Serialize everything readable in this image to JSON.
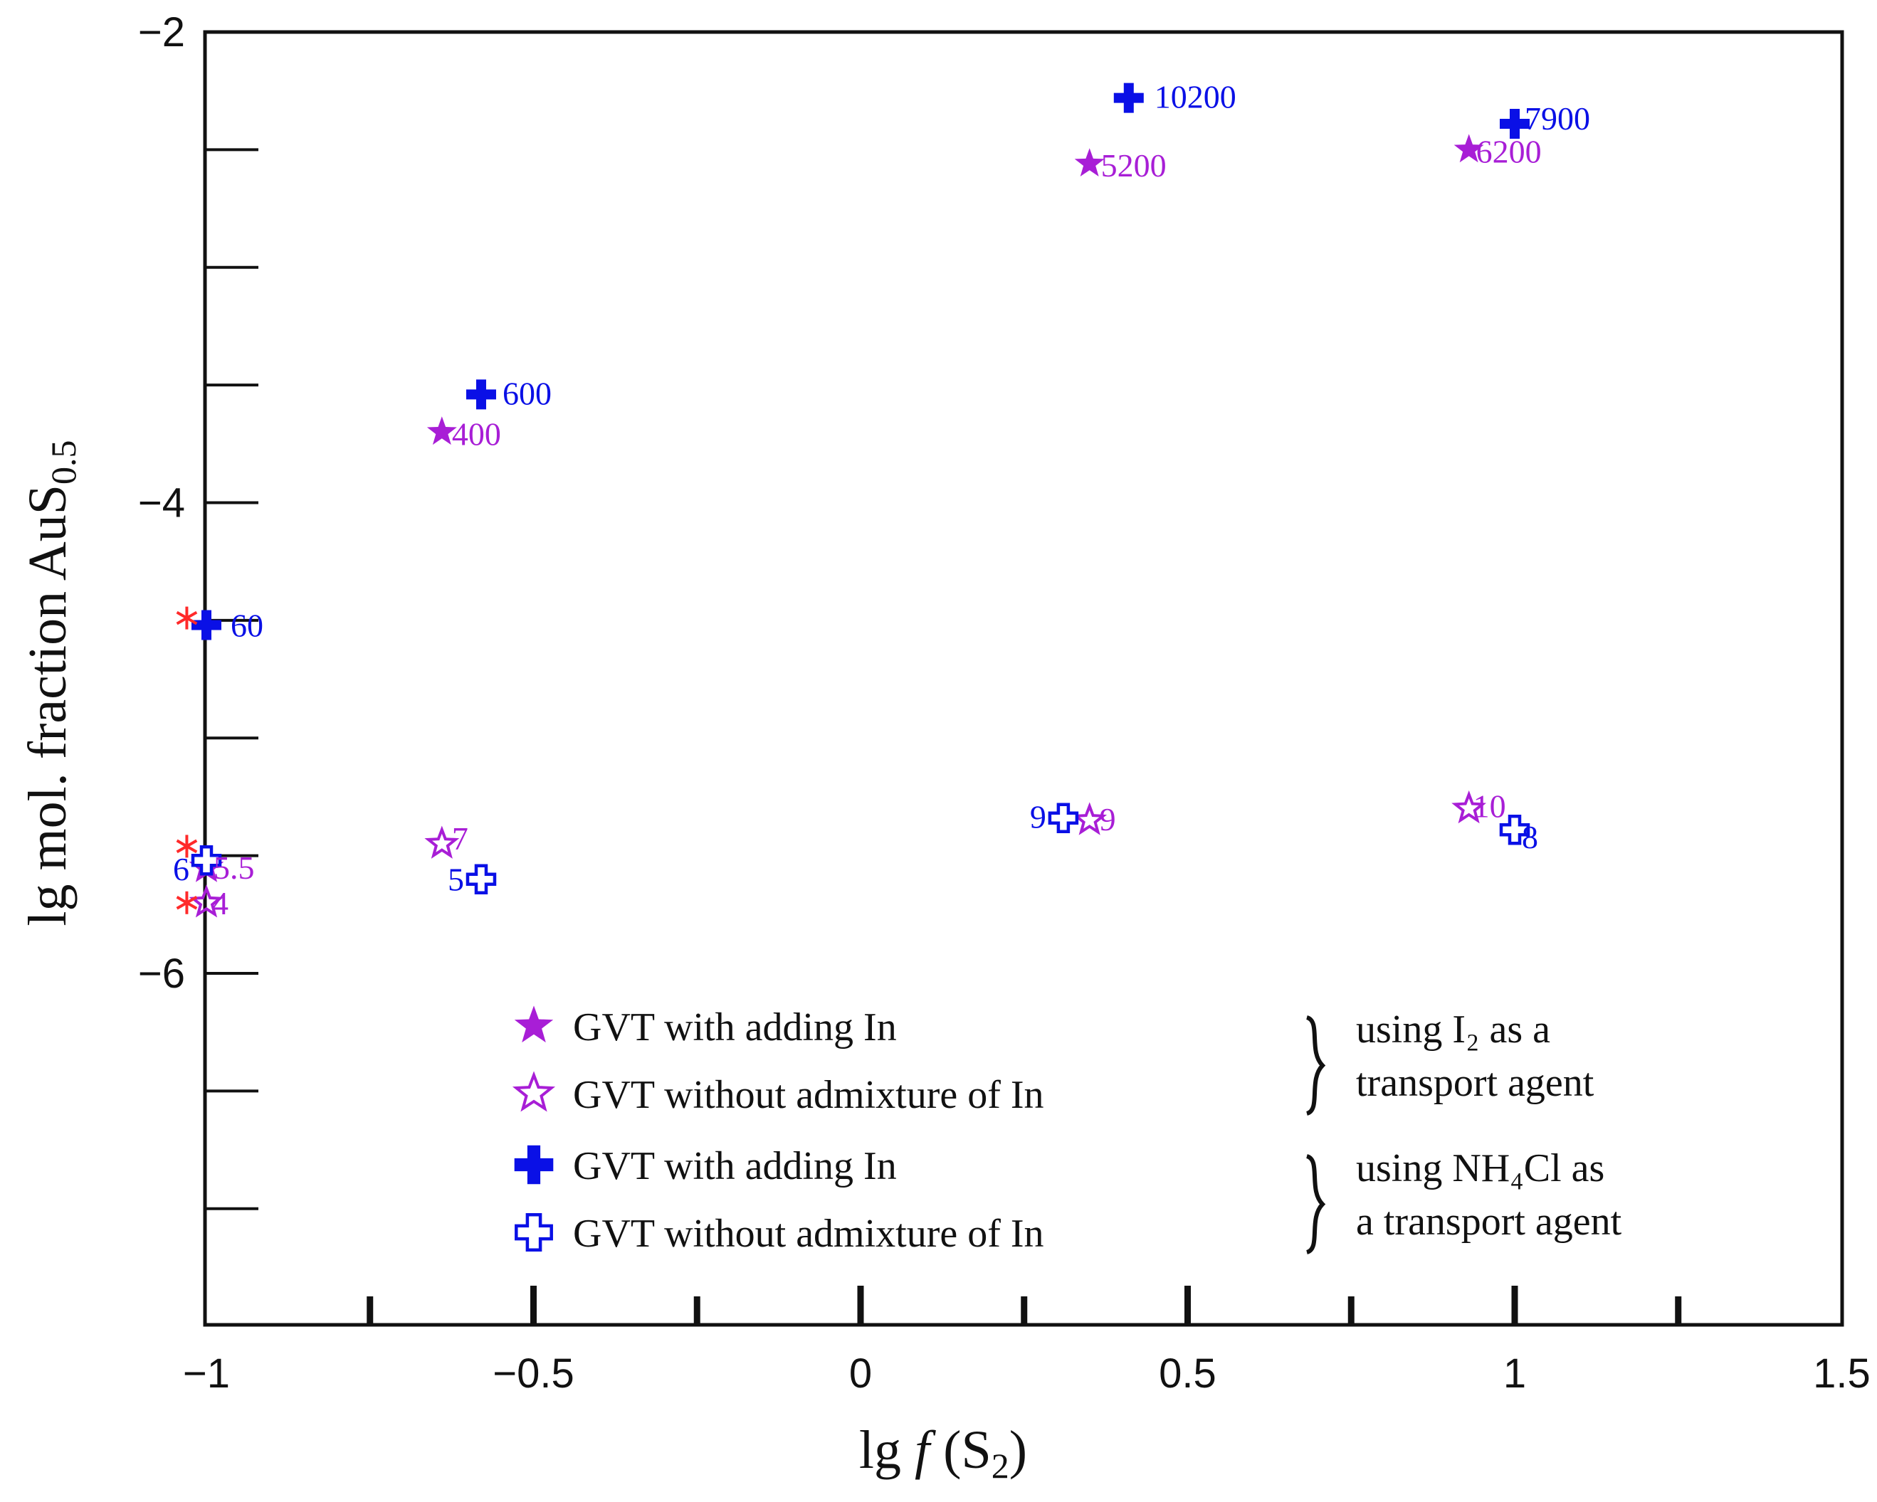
{
  "colors": {
    "purple": "#a81ed6",
    "blue": "#0a10e6",
    "red": "#ff2a2a",
    "axis": "#111111"
  },
  "chart_data": {
    "type": "scatter",
    "title": "",
    "xlabel": "lg f(S2)",
    "ylabel": "lg mol. fraction AuS0.5",
    "xlim": [
      -1,
      1.5
    ],
    "ylim": [
      -7.5,
      -2
    ],
    "x_ticks": [
      -1,
      -0.5,
      0,
      0.5,
      1,
      1.5
    ],
    "x_tick_labels": [
      "−1",
      "−0.5",
      "0",
      "0.5",
      "1",
      "1.5"
    ],
    "y_ticks": [
      -2,
      -4,
      -6
    ],
    "y_tick_labels": [
      "−2",
      "−4",
      "−6"
    ],
    "series": [
      {
        "name": "GVT with adding In (using I2 as a transport agent)",
        "marker": "filled-star",
        "color": "#a81ed6",
        "points": [
          {
            "x": -0.64,
            "y": -3.7,
            "label": "400"
          },
          {
            "x": 0.35,
            "y": -2.56,
            "label": "5200"
          },
          {
            "x": 0.93,
            "y": -2.5,
            "label": "6200"
          }
        ]
      },
      {
        "name": "GVT without admixture of In (using I2 as a transport agent)",
        "marker": "open-star",
        "color": "#a81ed6",
        "points": [
          {
            "x": -1.0,
            "y": -5.7,
            "label": "4"
          },
          {
            "x": -1.0,
            "y": -5.55,
            "label": "5.5"
          },
          {
            "x": -0.64,
            "y": -5.45,
            "label": "7"
          },
          {
            "x": 0.35,
            "y": -5.35,
            "label": "9"
          },
          {
            "x": 0.93,
            "y": -5.3,
            "label": "10"
          }
        ]
      },
      {
        "name": "GVT with adding In (using NH4Cl as a transport agent)",
        "marker": "filled-cross",
        "color": "#0a10e6",
        "points": [
          {
            "x": -1.0,
            "y": -4.52,
            "label": "60"
          },
          {
            "x": -0.58,
            "y": -3.54,
            "label": "600"
          },
          {
            "x": 0.41,
            "y": -2.28,
            "label": "10200"
          },
          {
            "x": 1.0,
            "y": -2.39,
            "label": "7900"
          }
        ]
      },
      {
        "name": "GVT without admixture of In (using NH4Cl as a transport agent)",
        "marker": "open-cross",
        "color": "#0a10e6",
        "points": [
          {
            "x": -1.0,
            "y": -5.52,
            "label": "6"
          },
          {
            "x": -0.58,
            "y": -5.6,
            "label": "5"
          },
          {
            "x": 0.31,
            "y": -5.34,
            "label": "9"
          },
          {
            "x": 1.0,
            "y": -5.39,
            "label": "8"
          }
        ]
      },
      {
        "name": "asterisk markers",
        "marker": "asterisk",
        "color": "#ff2a2a",
        "points": [
          {
            "x": -1.03,
            "y": -4.49
          },
          {
            "x": -1.03,
            "y": -5.46
          },
          {
            "x": -1.03,
            "y": -5.7
          }
        ]
      }
    ],
    "legend": {
      "placement": "bottom-right",
      "entries": [
        {
          "marker": "filled-star",
          "color": "#a81ed6",
          "label": "GVT with adding In"
        },
        {
          "marker": "open-star",
          "color": "#a81ed6",
          "label": "GVT without admixture of In"
        },
        {
          "marker": "filled-cross",
          "color": "#0a10e6",
          "label": "GVT with adding In"
        },
        {
          "marker": "open-cross",
          "color": "#0a10e6",
          "label": "GVT without admixture of In"
        }
      ],
      "group_notes": [
        {
          "line1": "using I₂ as a",
          "line2": "transport agent"
        },
        {
          "line1": "using NH₄Cl as",
          "line2": "a transport agent"
        }
      ]
    }
  }
}
